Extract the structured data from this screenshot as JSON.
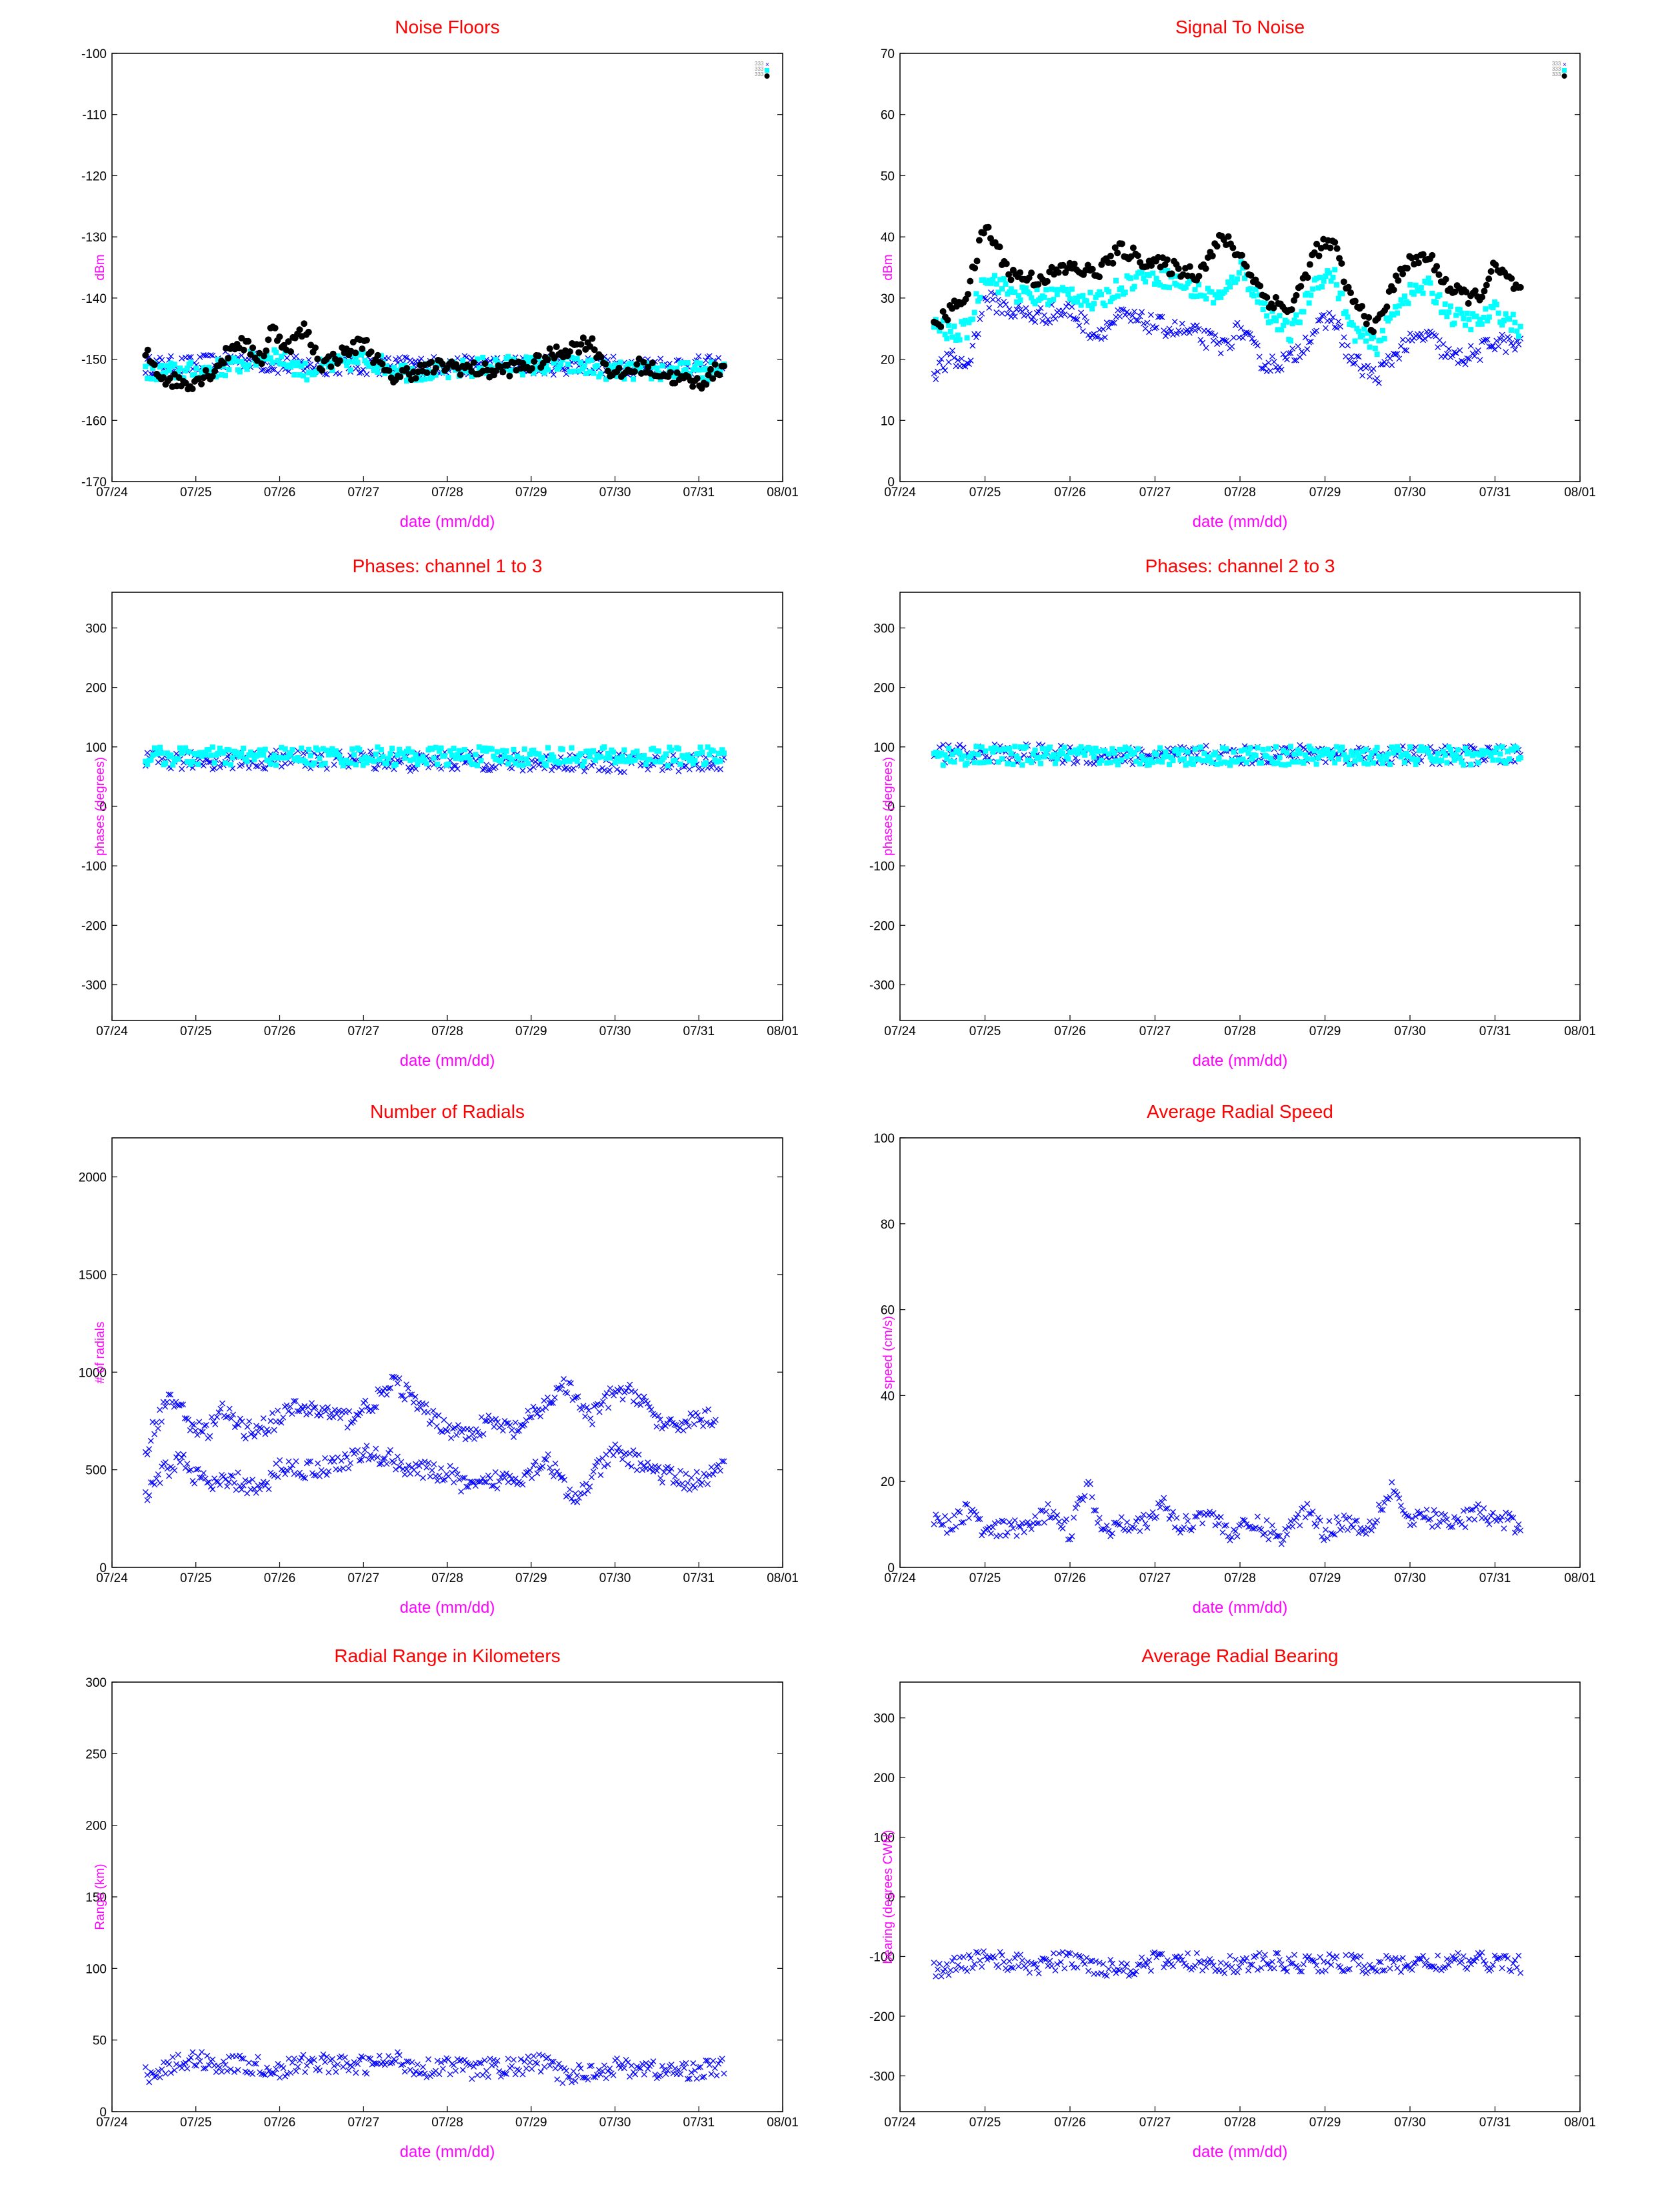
{
  "colors": {
    "title": "#ff0000",
    "axis_label": "#ff00ff",
    "series_black": "#000000",
    "series_cyan": "#00ffff",
    "series_blue": "#0000ff"
  },
  "legend_ticks": [
    "333",
    "333",
    "333"
  ],
  "chart_data": [
    {
      "id": "noise-floors",
      "type": "scatter",
      "title": "Noise Floors",
      "xlabel": "date (mm/dd)",
      "ylabel": "dBm",
      "x_tick_labels": [
        "07/24",
        "07/25",
        "07/26",
        "07/27",
        "07/28",
        "07/29",
        "07/30",
        "07/31",
        "08/01"
      ],
      "ylim": [
        -170,
        -100
      ],
      "y_ticks": [
        -100,
        -110,
        -120,
        -130,
        -140,
        -150,
        -160,
        -170
      ],
      "legend": "top-right",
      "series": [
        {
          "marker": "x",
          "color": "#0000ff",
          "days": [
            0.4,
            1.0,
            1.5,
            2.0,
            2.5,
            3.0,
            3.5,
            4.0,
            4.5,
            5.0,
            5.5,
            6.0,
            6.5,
            7.0,
            7.3
          ],
          "values": [
            -151,
            -151,
            -150,
            -151,
            -151,
            -151,
            -151,
            -151,
            -151,
            -151,
            -151,
            -151,
            -151,
            -151,
            -151
          ]
        },
        {
          "marker": "square",
          "color": "#00ffff",
          "days": [
            0.4,
            1.0,
            1.5,
            1.9,
            2.3,
            3.0,
            3.5,
            4.0,
            4.5,
            5.0,
            5.5,
            6.0,
            6.5,
            7.0,
            7.3
          ],
          "values": [
            -152,
            -152,
            -151,
            -149,
            -152,
            -150,
            -152,
            -152,
            -151,
            -151,
            -151,
            -152,
            -152,
            -152,
            -152
          ]
        },
        {
          "marker": "dot",
          "color": "#000000",
          "days": [
            0.4,
            0.6,
            0.9,
            1.2,
            1.5,
            1.8,
            1.9,
            2.1,
            2.3,
            2.5,
            2.9,
            3.0,
            3.3,
            3.6,
            4.0,
            4.5,
            5.0,
            5.3,
            5.7,
            6.0,
            6.3,
            6.7,
            7.0,
            7.3
          ],
          "values": [
            -149,
            -153,
            -154,
            -152,
            -147,
            -150,
            -145,
            -148,
            -145,
            -151,
            -148,
            -147,
            -153,
            -152,
            -151,
            -152,
            -151,
            -149,
            -147,
            -153,
            -151,
            -153,
            -154,
            -151
          ]
        }
      ]
    },
    {
      "id": "signal-to-noise",
      "type": "scatter",
      "title": "Signal To Noise",
      "xlabel": "date (mm/dd)",
      "ylabel": "dBm",
      "x_tick_labels": [
        "07/24",
        "07/25",
        "07/26",
        "07/27",
        "07/28",
        "07/29",
        "07/30",
        "07/31",
        "08/01"
      ],
      "ylim": [
        0,
        70
      ],
      "y_ticks": [
        70,
        60,
        50,
        40,
        30,
        20,
        10,
        0
      ],
      "legend": "top-right",
      "series": [
        {
          "marker": "x",
          "color": "#0000ff",
          "days": [
            0.4,
            0.6,
            0.8,
            1.0,
            1.3,
            1.6,
            2.0,
            2.3,
            2.6,
            2.9,
            3.2,
            3.5,
            3.8,
            4.0,
            4.3,
            4.6,
            4.9,
            5.1,
            5.3,
            5.6,
            5.9,
            6.2,
            6.5,
            6.8,
            7.0,
            7.3
          ],
          "values": [
            18,
            20,
            19,
            30,
            28,
            27,
            28,
            24,
            27,
            26,
            25,
            24,
            22,
            25,
            19,
            20,
            25,
            27,
            20,
            17,
            22,
            24,
            20,
            21,
            23,
            22
          ]
        },
        {
          "marker": "square",
          "color": "#00ffff",
          "days": [
            0.4,
            0.6,
            0.8,
            1.0,
            1.3,
            1.6,
            2.0,
            2.3,
            2.6,
            2.9,
            3.2,
            3.5,
            3.8,
            4.0,
            4.3,
            4.6,
            4.9,
            5.1,
            5.3,
            5.6,
            5.9,
            6.2,
            6.5,
            6.8,
            7.0,
            7.3
          ],
          "values": [
            26,
            24,
            25,
            34,
            31,
            30,
            31,
            29,
            32,
            34,
            33,
            31,
            30,
            35,
            28,
            24,
            33,
            34,
            25,
            22,
            30,
            32,
            27,
            26,
            28,
            25
          ]
        },
        {
          "marker": "dot",
          "color": "#000000",
          "days": [
            0.4,
            0.6,
            0.8,
            1.0,
            1.3,
            1.6,
            2.0,
            2.3,
            2.6,
            2.9,
            3.2,
            3.5,
            3.8,
            4.0,
            4.3,
            4.6,
            4.9,
            5.1,
            5.3,
            5.6,
            5.9,
            6.2,
            6.5,
            6.8,
            7.0,
            7.3
          ],
          "values": [
            25,
            28,
            31,
            42,
            34,
            33,
            35,
            34,
            38,
            36,
            35,
            34,
            40,
            37,
            30,
            28,
            38,
            39,
            30,
            25,
            35,
            37,
            31,
            30,
            35,
            31
          ]
        }
      ]
    },
    {
      "id": "phases-1-3",
      "type": "scatter",
      "title": "Phases: channel 1 to 3",
      "xlabel": "date (mm/dd)",
      "ylabel": "phases (degrees)",
      "x_tick_labels": [
        "07/24",
        "07/25",
        "07/26",
        "07/27",
        "07/28",
        "07/29",
        "07/30",
        "07/31",
        "08/01"
      ],
      "ylim": [
        -360,
        360
      ],
      "y_ticks": [
        300,
        200,
        100,
        0,
        -100,
        -200,
        -300
      ],
      "series": [
        {
          "marker": "x",
          "color": "#0000ff",
          "days": [
            0.4,
            1.0,
            1.5,
            2.0,
            2.5,
            3.0,
            3.5,
            4.0,
            4.5,
            5.0,
            5.5,
            6.0,
            6.5,
            7.0,
            7.3
          ],
          "values": [
            75,
            78,
            77,
            80,
            78,
            80,
            74,
            76,
            76,
            73,
            75,
            73,
            73,
            75,
            76
          ]
        },
        {
          "marker": "square",
          "color": "#00ffff",
          "days": [
            0.4,
            1.0,
            2.0,
            3.0,
            4.0,
            5.0,
            6.0,
            7.0,
            7.3
          ],
          "values": [
            84,
            84,
            84,
            84,
            84,
            84,
            84,
            84,
            84
          ]
        }
      ]
    },
    {
      "id": "phases-2-3",
      "type": "scatter",
      "title": "Phases: channel 2 to 3",
      "xlabel": "date (mm/dd)",
      "ylabel": "phases (degrees)",
      "x_tick_labels": [
        "07/24",
        "07/25",
        "07/26",
        "07/27",
        "07/28",
        "07/29",
        "07/30",
        "07/31",
        "08/01"
      ],
      "ylim": [
        -360,
        360
      ],
      "y_ticks": [
        300,
        200,
        100,
        0,
        -100,
        -200,
        -300
      ],
      "series": [
        {
          "marker": "x",
          "color": "#0000ff",
          "days": [
            0.4,
            1.0,
            1.5,
            2.0,
            2.5,
            3.0,
            3.5,
            4.0,
            4.5,
            5.0,
            5.5,
            6.0,
            6.5,
            7.0,
            7.3
          ],
          "values": [
            90,
            88,
            90,
            86,
            86,
            84,
            86,
            86,
            88,
            88,
            86,
            86,
            86,
            86,
            86
          ]
        },
        {
          "marker": "square",
          "color": "#00ffff",
          "days": [
            0.4,
            1.0,
            2.0,
            3.0,
            4.0,
            5.0,
            6.0,
            7.0,
            7.3
          ],
          "values": [
            85,
            85,
            85,
            85,
            85,
            85,
            85,
            85,
            85
          ]
        }
      ]
    },
    {
      "id": "number-of-radials",
      "type": "scatter",
      "title": "Number of Radials",
      "xlabel": "date (mm/dd)",
      "ylabel": "# of radials",
      "x_tick_labels": [
        "07/24",
        "07/25",
        "07/26",
        "07/27",
        "07/28",
        "07/29",
        "07/30",
        "07/31",
        "08/01"
      ],
      "ylim": [
        0,
        2200
      ],
      "y_ticks": [
        2000,
        1500,
        1000,
        500,
        0
      ],
      "series": [
        {
          "marker": "x",
          "color": "#0000ff",
          "days": [
            0.4,
            0.6,
            0.8,
            1.0,
            1.2,
            1.5,
            1.8,
            2.0,
            2.3,
            2.6,
            3.0,
            3.3,
            3.6,
            4.0,
            4.3,
            4.6,
            4.9,
            5.2,
            5.5,
            5.8,
            6.0,
            6.3,
            6.6,
            6.9,
            7.1,
            7.3
          ],
          "values": [
            350,
            480,
            560,
            470,
            420,
            440,
            390,
            520,
            500,
            520,
            580,
            560,
            500,
            480,
            400,
            450,
            470,
            560,
            330,
            500,
            590,
            540,
            470,
            440,
            460,
            510
          ]
        },
        {
          "marker": "x",
          "color": "#0000ff",
          "days": [
            0.4,
            0.5,
            0.7,
            0.9,
            1.1,
            1.3,
            1.6,
            1.9,
            2.2,
            2.5,
            2.8,
            3.1,
            3.4,
            3.7,
            4.0,
            4.2,
            4.5,
            4.8,
            5.1,
            5.4,
            5.7,
            6.0,
            6.3,
            6.6,
            6.9,
            7.2
          ],
          "values": [
            600,
            720,
            880,
            760,
            680,
            800,
            700,
            740,
            820,
            800,
            760,
            840,
            950,
            800,
            720,
            680,
            740,
            700,
            800,
            940,
            760,
            900,
            880,
            700,
            760,
            770
          ]
        }
      ]
    },
    {
      "id": "average-radial-speed",
      "type": "scatter",
      "title": "Average Radial Speed",
      "xlabel": "date (mm/dd)",
      "ylabel": "speed (cm/s)",
      "x_tick_labels": [
        "07/24",
        "07/25",
        "07/26",
        "07/27",
        "07/28",
        "07/29",
        "07/30",
        "07/31",
        "08/01"
      ],
      "ylim": [
        0,
        100
      ],
      "y_ticks": [
        100,
        80,
        60,
        40,
        20,
        0
      ],
      "series": [
        {
          "marker": "x",
          "color": "#0000ff",
          "days": [
            0.4,
            0.6,
            0.8,
            1.0,
            1.3,
            1.6,
            1.8,
            2.0,
            2.2,
            2.4,
            2.6,
            2.9,
            3.1,
            3.3,
            3.6,
            3.9,
            4.2,
            4.5,
            4.8,
            5.0,
            5.2,
            5.5,
            5.8,
            6.0,
            6.2,
            6.5,
            6.8,
            7.0,
            7.3
          ],
          "values": [
            12,
            9,
            14,
            8,
            9,
            10,
            14,
            8,
            20,
            8,
            11,
            10,
            15,
            9,
            13,
            8,
            10,
            7,
            14,
            8,
            11,
            9,
            19,
            10,
            12,
            10,
            13,
            11,
            10
          ]
        }
      ]
    },
    {
      "id": "radial-range",
      "type": "scatter",
      "title": "Radial Range in Kilometers",
      "xlabel": "date (mm/dd)",
      "ylabel": "Range (km)",
      "x_tick_labels": [
        "07/24",
        "07/25",
        "07/26",
        "07/27",
        "07/28",
        "07/29",
        "07/30",
        "07/31",
        "08/01"
      ],
      "ylim": [
        0,
        300
      ],
      "y_ticks": [
        300,
        250,
        200,
        150,
        100,
        50,
        0
      ],
      "series": [
        {
          "marker": "x",
          "color": "#0000ff",
          "days": [
            0.4,
            0.7,
            1.0,
            1.3,
            1.6,
            2.0,
            2.4,
            2.8,
            3.1,
            3.4,
            3.7,
            4.0,
            4.3,
            4.6,
            4.9,
            5.1,
            5.4,
            5.7,
            6.0,
            6.3,
            6.6,
            6.9,
            7.1,
            7.3
          ],
          "values": [
            26,
            32,
            37,
            33,
            33,
            29,
            35,
            32,
            33,
            36,
            30,
            33,
            29,
            31,
            31,
            35,
            25,
            28,
            31,
            31,
            28,
            29,
            30,
            31
          ]
        }
      ]
    },
    {
      "id": "average-radial-bearing",
      "type": "scatter",
      "title": "Average Radial Bearing",
      "xlabel": "date (mm/dd)",
      "ylabel": "bearing (degrees CWN)",
      "x_tick_labels": [
        "07/24",
        "07/25",
        "07/26",
        "07/27",
        "07/28",
        "07/29",
        "07/30",
        "07/31",
        "08/01"
      ],
      "ylim": [
        -360,
        360
      ],
      "y_ticks": [
        300,
        200,
        100,
        0,
        -100,
        -200,
        -300
      ],
      "series": [
        {
          "marker": "x",
          "color": "#0000ff",
          "days": [
            0.4,
            0.7,
            1.0,
            1.3,
            1.6,
            2.0,
            2.3,
            2.6,
            3.0,
            3.3,
            3.6,
            4.0,
            4.3,
            4.6,
            5.0,
            5.3,
            5.6,
            6.0,
            6.3,
            6.6,
            7.0,
            7.3
          ],
          "values": [
            -125,
            -115,
            -100,
            -110,
            -115,
            -105,
            -115,
            -120,
            -108,
            -108,
            -110,
            -115,
            -108,
            -112,
            -110,
            -112,
            -115,
            -112,
            -110,
            -110,
            -108,
            -112
          ]
        }
      ]
    }
  ]
}
